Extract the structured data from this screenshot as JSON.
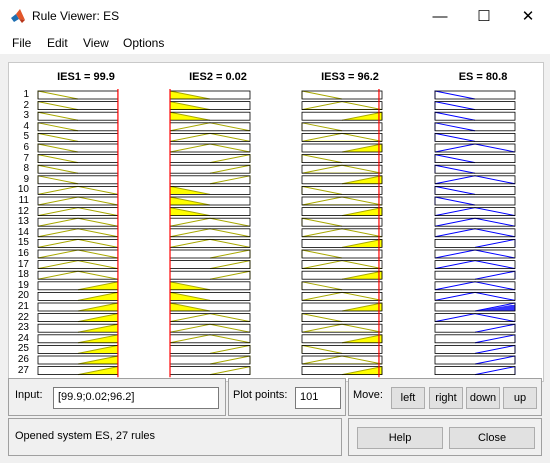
{
  "window": {
    "title": "Rule Viewer: ES",
    "minimize": "—",
    "maximize": "☐",
    "close": "✕"
  },
  "menu": [
    "File",
    "Edit",
    "View",
    "Options"
  ],
  "columns": [
    {
      "name": "IES1",
      "value": "99.9",
      "title": "IES1 = 99.9"
    },
    {
      "name": "IES2",
      "value": "0.02",
      "title": "IES2 = 0.02"
    },
    {
      "name": "IES3",
      "value": "96.2",
      "title": "IES3 = 96.2"
    },
    {
      "name": "ES",
      "value": "80.8",
      "title": "ES = 80.8"
    }
  ],
  "rules": {
    "count": 27,
    "labels": [
      "1",
      "2",
      "3",
      "4",
      "5",
      "6",
      "7",
      "8",
      "9",
      "10",
      "11",
      "12",
      "13",
      "14",
      "15",
      "16",
      "17",
      "18",
      "19",
      "20",
      "21",
      "22",
      "23",
      "24",
      "25",
      "26",
      "27"
    ],
    "ies1_mf": [
      "low",
      "low",
      "low",
      "low",
      "low",
      "low",
      "low",
      "low",
      "low",
      "mid",
      "mid",
      "mid",
      "mid",
      "mid",
      "mid",
      "mid",
      "mid",
      "mid",
      "high",
      "high",
      "high",
      "high",
      "high",
      "high",
      "high",
      "high",
      "high"
    ],
    "ies2_mf": [
      "low",
      "low",
      "low",
      "mid",
      "mid",
      "mid",
      "high",
      "high",
      "high",
      "low",
      "low",
      "low",
      "mid",
      "mid",
      "mid",
      "high",
      "high",
      "high",
      "low",
      "low",
      "low",
      "mid",
      "mid",
      "mid",
      "high",
      "high",
      "high"
    ],
    "ies3_mf": [
      "low",
      "mid",
      "high",
      "low",
      "mid",
      "high",
      "low",
      "mid",
      "high",
      "low",
      "mid",
      "high",
      "low",
      "mid",
      "high",
      "low",
      "mid",
      "high",
      "low",
      "mid",
      "high",
      "low",
      "mid",
      "high",
      "low",
      "mid",
      "high"
    ],
    "es_mf": [
      "low",
      "low",
      "low",
      "low",
      "low",
      "mid",
      "low",
      "low",
      "mid",
      "low",
      "low",
      "mid",
      "mid",
      "mid",
      "high",
      "mid",
      "mid",
      "high",
      "mid",
      "mid",
      "high",
      "mid",
      "high",
      "high",
      "high",
      "high",
      "high"
    ],
    "es_fired_rule": 21
  },
  "colors": {
    "fill": "#ffff00",
    "outline_input": "#a8a800",
    "outline_output": "#0000ff",
    "output_fill": "#3333ff",
    "marker": "#ff0000"
  },
  "input": {
    "label": "Input:",
    "value": "[99.9;0.02;96.2]"
  },
  "plot_points": {
    "label": "Plot points:",
    "value": "101"
  },
  "move": {
    "label": "Move:",
    "left": "left",
    "right": "right",
    "down": "down",
    "up": "up"
  },
  "status": {
    "text": "Opened system ES, 27 rules"
  },
  "buttons": {
    "help": "Help",
    "close": "Close"
  }
}
